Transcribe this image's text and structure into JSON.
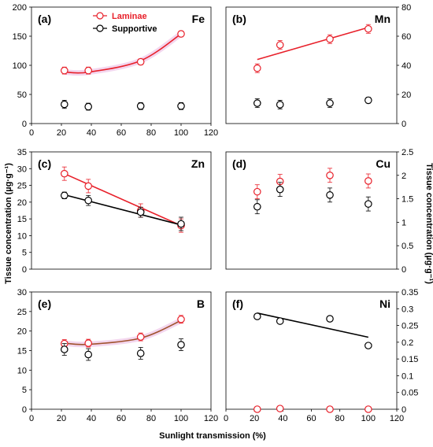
{
  "figure": {
    "ylabel_left": "Tissue concentration (µg·g⁻¹)",
    "ylabel_right": "Tissue concentration (µg·g⁻¹)",
    "xlabel": "Sunlight transmission (%)",
    "colors": {
      "laminae": "#e8202a",
      "supportive": "#000000",
      "shade": "#e9b4e0"
    }
  },
  "chart_data": [
    {
      "type": "scatter",
      "panel": "(a)",
      "element": "Fe",
      "xlim": [
        0,
        120
      ],
      "ylim": [
        0,
        200
      ],
      "xticks": [
        "0",
        "20",
        "40",
        "60",
        "80",
        "100",
        "120"
      ],
      "yticks": [
        "0",
        "50",
        "100",
        "150",
        "200"
      ],
      "legend": [
        "Laminae",
        "Supportive"
      ],
      "series": [
        {
          "name": "Laminae",
          "x": [
            22,
            38,
            73,
            100
          ],
          "y": [
            91,
            91,
            106,
            154
          ],
          "err": [
            6,
            6,
            5,
            5
          ],
          "trend": "quadratic",
          "trend_y": [
            88.5,
            88.2,
            108,
            154
          ]
        },
        {
          "name": "Supportive",
          "x": [
            22,
            38,
            73,
            100
          ],
          "y": [
            33,
            29,
            30,
            30
          ],
          "err": [
            7,
            6,
            6,
            6
          ],
          "trend": ""
        }
      ]
    },
    {
      "type": "scatter",
      "panel": "(b)",
      "element": "Mn",
      "xlim": [
        0,
        120
      ],
      "ylim": [
        0,
        80
      ],
      "yticks": [
        "0",
        "20",
        "40",
        "60",
        "80"
      ],
      "series": [
        {
          "name": "Laminae",
          "x": [
            22,
            38,
            73,
            100
          ],
          "y": [
            38,
            54,
            58,
            65
          ],
          "err": [
            3,
            3,
            3,
            3
          ],
          "trend": "linear",
          "trend_y": [
            44,
            48.5,
            58,
            66
          ]
        },
        {
          "name": "Supportive",
          "x": [
            22,
            38,
            73,
            100
          ],
          "y": [
            14,
            13,
            14,
            16
          ],
          "err": [
            3,
            3,
            3,
            2
          ],
          "trend": ""
        }
      ]
    },
    {
      "type": "scatter",
      "panel": "(c)",
      "element": "Zn",
      "xlim": [
        0,
        120
      ],
      "ylim": [
        0,
        35
      ],
      "yticks": [
        "0",
        "5",
        "10",
        "15",
        "20",
        "25",
        "30",
        "35"
      ],
      "series": [
        {
          "name": "Laminae",
          "x": [
            22,
            38,
            73,
            100
          ],
          "y": [
            28.5,
            24.8,
            17.5,
            13
          ],
          "err": [
            2,
            2,
            2,
            2
          ],
          "trend": "linear",
          "trend_y": [
            28.5,
            25.2,
            18.0,
            13.0
          ]
        },
        {
          "name": "Supportive",
          "x": [
            22,
            38,
            73,
            100
          ],
          "y": [
            22,
            20.5,
            17,
            13.5
          ],
          "err": [
            1,
            1.5,
            1.5,
            2
          ],
          "trend": "linear",
          "trend_y": [
            22.2,
            20.5,
            16.9,
            13.2
          ]
        }
      ]
    },
    {
      "type": "scatter",
      "panel": "(d)",
      "element": "Cu",
      "xlim": [
        0,
        120
      ],
      "ylim": [
        0,
        2.5
      ],
      "yticks": [
        "0",
        "0.5",
        "1",
        "1.5",
        "2",
        "2.5"
      ],
      "series": [
        {
          "name": "Laminae",
          "x": [
            22,
            38,
            73,
            100
          ],
          "y": [
            1.65,
            1.87,
            2.0,
            1.88
          ],
          "err": [
            0.15,
            0.15,
            0.15,
            0.15
          ],
          "trend": ""
        },
        {
          "name": "Supportive",
          "x": [
            22,
            38,
            73,
            100
          ],
          "y": [
            1.33,
            1.7,
            1.58,
            1.39
          ],
          "err": [
            0.15,
            0.15,
            0.15,
            0.15
          ],
          "trend": ""
        }
      ]
    },
    {
      "type": "scatter",
      "panel": "(e)",
      "element": "B",
      "xlim": [
        0,
        120
      ],
      "ylim": [
        0,
        30
      ],
      "yticks": [
        "0",
        "5",
        "10",
        "15",
        "20",
        "25",
        "30"
      ],
      "series": [
        {
          "name": "Laminae",
          "x": [
            22,
            38,
            73,
            100
          ],
          "y": [
            16.8,
            16.9,
            18.5,
            23
          ],
          "err": [
            1,
            1,
            1,
            1
          ],
          "trend": "quadratic",
          "trend_y": [
            16.9,
            16.6,
            18.2,
            22.7
          ]
        },
        {
          "name": "Supportive",
          "x": [
            22,
            38,
            73,
            100
          ],
          "y": [
            15.3,
            14,
            14.3,
            16.5
          ],
          "err": [
            1.5,
            1.5,
            1.5,
            1.5
          ],
          "trend": ""
        }
      ]
    },
    {
      "type": "scatter",
      "panel": "(f)",
      "element": "Ni",
      "xlim": [
        0,
        120
      ],
      "ylim": [
        0,
        0.35
      ],
      "xticks": [
        "0",
        "20",
        "40",
        "60",
        "80",
        "100",
        "120"
      ],
      "yticks": [
        "0",
        "0.05",
        "0.1",
        "0.15",
        "0.2",
        "0.25",
        "0.3",
        "0.35"
      ],
      "series": [
        {
          "name": "Laminae",
          "x": [
            22,
            38,
            73,
            100
          ],
          "y": [
            0.0,
            0.002,
            0.0,
            0.0
          ],
          "err": [
            0.002,
            0.002,
            0.002,
            0.002
          ],
          "trend": ""
        },
        {
          "name": "Supportive",
          "x": [
            22,
            38,
            73,
            100
          ],
          "y": [
            0.277,
            0.263,
            0.27,
            0.19
          ],
          "err": [
            0.006,
            0.006,
            0.006,
            0.006
          ],
          "trend": "linear",
          "trend_y": [
            0.287,
            0.272,
            0.243,
            0.215
          ]
        }
      ]
    }
  ]
}
